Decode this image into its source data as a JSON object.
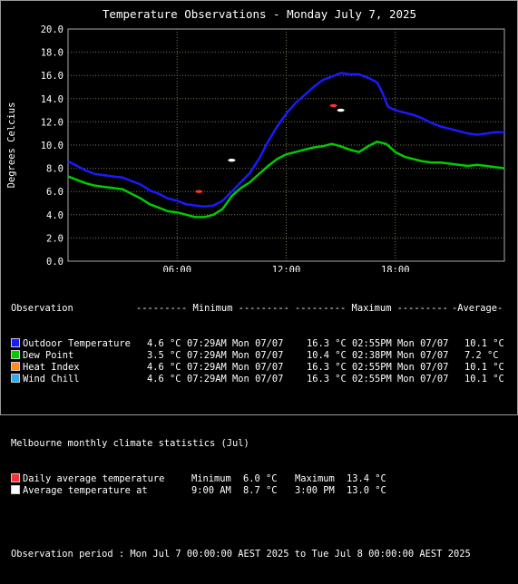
{
  "title": "Temperature Observations - Monday July 7, 2025",
  "chart_data": {
    "type": "line",
    "title": "Temperature Observations - Monday July 7, 2025",
    "ylabel": "Degrees Celcius",
    "ylim": [
      0,
      20
    ],
    "yticks": [
      "0.0",
      "2.0",
      "4.0",
      "6.0",
      "8.0",
      "10.0",
      "12.0",
      "14.0",
      "16.0",
      "18.0",
      "20.0"
    ],
    "xlim": [
      0,
      24
    ],
    "xticks": [
      {
        "hour": 6,
        "label": "06:00"
      },
      {
        "hour": 12,
        "label": "12:00"
      },
      {
        "hour": 18,
        "label": "18:00"
      }
    ],
    "grid": true,
    "series": [
      {
        "name": "Outdoor Temperature",
        "color": "#1a1aff",
        "points": [
          [
            0,
            8.6
          ],
          [
            0.5,
            8.2
          ],
          [
            1,
            7.8
          ],
          [
            1.5,
            7.5
          ],
          [
            2,
            7.4
          ],
          [
            2.5,
            7.3
          ],
          [
            3,
            7.2
          ],
          [
            3.5,
            6.9
          ],
          [
            4,
            6.6
          ],
          [
            4.5,
            6.1
          ],
          [
            5,
            5.8
          ],
          [
            5.5,
            5.4
          ],
          [
            6,
            5.2
          ],
          [
            6.5,
            4.9
          ],
          [
            7,
            4.8
          ],
          [
            7.5,
            4.7
          ],
          [
            8,
            4.8
          ],
          [
            8.5,
            5.2
          ],
          [
            9,
            6.0
          ],
          [
            9.5,
            6.8
          ],
          [
            10,
            7.6
          ],
          [
            10.5,
            8.8
          ],
          [
            11,
            10.3
          ],
          [
            11.5,
            11.6
          ],
          [
            12,
            12.7
          ],
          [
            12.5,
            13.6
          ],
          [
            13,
            14.3
          ],
          [
            13.5,
            15.0
          ],
          [
            14,
            15.6
          ],
          [
            14.5,
            15.9
          ],
          [
            15,
            16.2
          ],
          [
            15.5,
            16.1
          ],
          [
            16,
            16.1
          ],
          [
            16.5,
            15.8
          ],
          [
            17,
            15.4
          ],
          [
            17.3,
            14.5
          ],
          [
            17.6,
            13.3
          ],
          [
            18,
            13.0
          ],
          [
            18.5,
            12.8
          ],
          [
            19,
            12.6
          ],
          [
            19.5,
            12.3
          ],
          [
            20,
            11.9
          ],
          [
            20.5,
            11.6
          ],
          [
            21,
            11.4
          ],
          [
            21.5,
            11.2
          ],
          [
            22,
            11.0
          ],
          [
            22.5,
            10.9
          ],
          [
            23,
            11.0
          ],
          [
            23.5,
            11.1
          ],
          [
            24,
            11.1
          ]
        ]
      },
      {
        "name": "Dew Point",
        "color": "#00cc00",
        "points": [
          [
            0,
            7.3
          ],
          [
            0.5,
            7.0
          ],
          [
            1,
            6.7
          ],
          [
            1.5,
            6.5
          ],
          [
            2,
            6.4
          ],
          [
            2.5,
            6.3
          ],
          [
            3,
            6.2
          ],
          [
            3.5,
            5.8
          ],
          [
            4,
            5.4
          ],
          [
            4.5,
            4.9
          ],
          [
            5,
            4.6
          ],
          [
            5.5,
            4.3
          ],
          [
            6,
            4.2
          ],
          [
            6.5,
            4.0
          ],
          [
            7,
            3.8
          ],
          [
            7.5,
            3.8
          ],
          [
            8,
            4.0
          ],
          [
            8.5,
            4.5
          ],
          [
            9,
            5.6
          ],
          [
            9.5,
            6.3
          ],
          [
            10,
            6.8
          ],
          [
            10.5,
            7.5
          ],
          [
            11,
            8.2
          ],
          [
            11.5,
            8.8
          ],
          [
            12,
            9.2
          ],
          [
            12.5,
            9.4
          ],
          [
            13,
            9.6
          ],
          [
            13.5,
            9.8
          ],
          [
            14,
            9.9
          ],
          [
            14.5,
            10.1
          ],
          [
            15,
            9.9
          ],
          [
            15.5,
            9.6
          ],
          [
            16,
            9.4
          ],
          [
            16.5,
            9.9
          ],
          [
            17,
            10.3
          ],
          [
            17.5,
            10.1
          ],
          [
            18,
            9.4
          ],
          [
            18.5,
            9.0
          ],
          [
            19,
            8.8
          ],
          [
            19.5,
            8.6
          ],
          [
            20,
            8.5
          ],
          [
            20.5,
            8.5
          ],
          [
            21,
            8.4
          ],
          [
            21.5,
            8.3
          ],
          [
            22,
            8.2
          ],
          [
            22.5,
            8.3
          ],
          [
            23,
            8.2
          ],
          [
            23.5,
            8.1
          ],
          [
            24,
            8.0
          ]
        ]
      }
    ],
    "climate_markers": [
      {
        "label": "daily-min",
        "hour": 7.2,
        "value": 6.0,
        "color": "#ff3030"
      },
      {
        "label": "daily-max",
        "hour": 14.6,
        "value": 13.4,
        "color": "#ff3030"
      },
      {
        "label": "avg-9am",
        "hour": 9.0,
        "value": 8.7,
        "color": "#ffffff"
      },
      {
        "label": "avg-3pm",
        "hour": 15.0,
        "value": 13.0,
        "color": "#ffffff"
      }
    ]
  },
  "table": {
    "header": {
      "observation": "Observation",
      "min_label": "--------- Minimum ---------",
      "max_label": "--------- Maximum ---------",
      "avg_label": "-Average-"
    },
    "rows": [
      {
        "name": "Outdoor Temperature",
        "color": "#1a1aff",
        "min": "4.6 °C",
        "min_time": "07:29AM Mon 07/07",
        "max": "16.3 °C",
        "max_time": "02:55PM Mon 07/07",
        "avg": "10.1 °C"
      },
      {
        "name": "Dew Point",
        "color": "#00cc00",
        "min": "3.5 °C",
        "min_time": "07:29AM Mon 07/07",
        "max": "10.4 °C",
        "max_time": "02:38PM Mon 07/07",
        "avg": "7.2 °C"
      },
      {
        "name": "Heat Index",
        "color": "#ff8c1a",
        "min": "4.6 °C",
        "min_time": "07:29AM Mon 07/07",
        "max": "16.3 °C",
        "max_time": "02:55PM Mon 07/07",
        "avg": "10.1 °C"
      },
      {
        "name": "Wind Chill",
        "color": "#33aaee",
        "min": "4.6 °C",
        "min_time": "07:29AM Mon 07/07",
        "max": "16.3 °C",
        "max_time": "02:55PM Mon 07/07",
        "avg": "10.1 °C"
      }
    ]
  },
  "climate": {
    "heading": "Melbourne monthly climate statistics (Jul)",
    "rows": [
      {
        "name": "Daily average temperature",
        "color": "#ff3030",
        "a_label": "Minimum",
        "a_value": "6.0 °C",
        "b_label": "Maximum",
        "b_value": "13.4 °C"
      },
      {
        "name": "Average temperature at",
        "color": "#ffffff",
        "a_label": "9:00 AM",
        "a_value": "8.7 °C",
        "b_label": "3:00 PM",
        "b_value": "13.0 °C"
      }
    ]
  },
  "period": "Observation period : Mon Jul 7 00:00:00 AEST 2025 to Tue Jul 8 00:00:00 AEST 2025"
}
